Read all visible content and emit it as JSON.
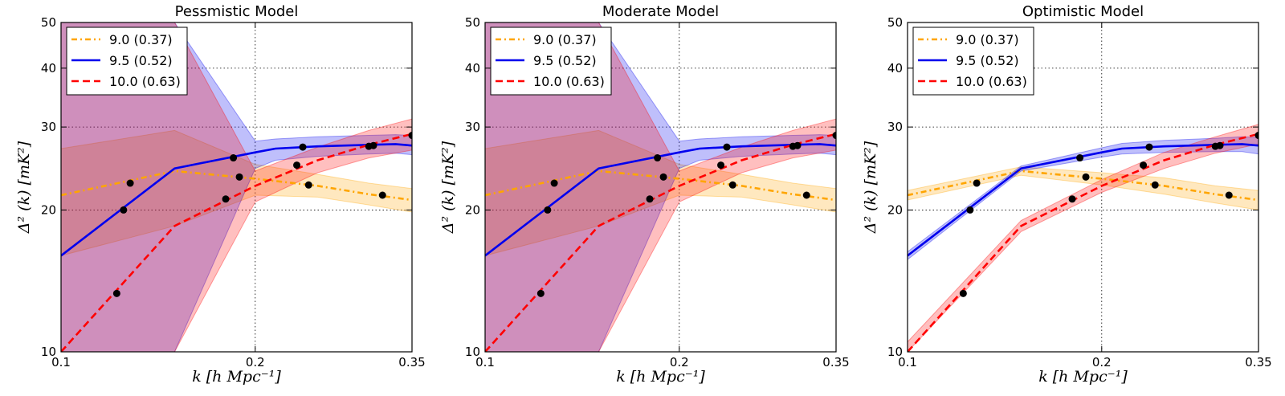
{
  "figure": {
    "xlabel": "k [h Mpc⁻¹]",
    "ylabel": "Δ² (k) [mK²]"
  },
  "chart_data": [
    {
      "type": "line",
      "title": "Pessmistic Model",
      "xscale": "log",
      "yscale": "log",
      "xlim": [
        0.1,
        0.35
      ],
      "ylim": [
        10,
        50
      ],
      "xticks": [
        0.1,
        0.2,
        0.35
      ],
      "xtick_labels": [
        "0.1",
        "0.2",
        "0.35"
      ],
      "yticks": [
        10,
        20,
        30,
        40,
        50
      ],
      "ytick_labels": [
        "10",
        "20",
        "30",
        "40",
        "50"
      ],
      "grid": true,
      "legend": "top-left",
      "series": [
        {
          "name": "9.0 (0.37)",
          "color": "#FFA500",
          "style": "dashdot",
          "x": [
            0.1,
            0.15,
            0.2,
            0.25,
            0.3,
            0.35
          ],
          "y": [
            21.5,
            24.2,
            23.3,
            22.5,
            21.6,
            21.0
          ],
          "band_low": [
            16.0,
            18.5,
            21.5,
            21.3,
            20.5,
            19.8
          ],
          "band_high": [
            27.0,
            29.5,
            25.0,
            23.8,
            22.8,
            22.2
          ]
        },
        {
          "name": "9.5 (0.52)",
          "color": "#0000EE",
          "style": "solid",
          "x": [
            0.1,
            0.15,
            0.2,
            0.215,
            0.25,
            0.3,
            0.33,
            0.35
          ],
          "y": [
            16.0,
            24.5,
            26.5,
            27.0,
            27.3,
            27.5,
            27.6,
            27.4
          ],
          "band_low": [
            10,
            10,
            24.5,
            25.5,
            26.0,
            26.3,
            26.4,
            26.2
          ],
          "band_high": [
            50,
            50,
            28.0,
            28.3,
            28.6,
            28.8,
            28.9,
            28.8
          ]
        },
        {
          "name": "10.0 (0.63)",
          "color": "#FF0000",
          "style": "dashed",
          "x": [
            0.1,
            0.15,
            0.2,
            0.25,
            0.3,
            0.35
          ],
          "y": [
            10.0,
            18.5,
            22.5,
            25.5,
            27.5,
            29.0
          ],
          "band_low": [
            10,
            10,
            20.8,
            24.0,
            25.8,
            26.8
          ],
          "band_high": [
            50,
            50,
            24.2,
            27.2,
            29.5,
            31.2
          ]
        }
      ],
      "points": {
        "x": [
          0.122,
          0.125,
          0.128,
          0.18,
          0.185,
          0.189,
          0.232,
          0.237,
          0.242,
          0.3,
          0.305,
          0.315,
          0.35
        ],
        "y": [
          13.3,
          20.0,
          22.8,
          21.1,
          25.8,
          23.5,
          24.9,
          27.2,
          22.6,
          27.3,
          27.4,
          21.5,
          28.8
        ]
      }
    },
    {
      "type": "line",
      "title": "Moderate Model",
      "xscale": "log",
      "yscale": "log",
      "xlim": [
        0.1,
        0.35
      ],
      "ylim": [
        10,
        50
      ],
      "xticks": [
        0.1,
        0.2,
        0.35
      ],
      "xtick_labels": [
        "0.1",
        "0.2",
        "0.35"
      ],
      "yticks": [
        10,
        20,
        30,
        40,
        50
      ],
      "ytick_labels": [
        "10",
        "20",
        "30",
        "40",
        "50"
      ],
      "grid": true,
      "legend": "top-left",
      "series": [
        {
          "name": "9.0 (0.37)",
          "color": "#FFA500",
          "style": "dashdot",
          "x": [
            0.1,
            0.15,
            0.2,
            0.25,
            0.3,
            0.35
          ],
          "y": [
            21.5,
            24.2,
            23.3,
            22.5,
            21.6,
            21.0
          ],
          "band_low": [
            16.0,
            18.5,
            21.5,
            21.3,
            20.5,
            19.8
          ],
          "band_high": [
            27.0,
            29.5,
            25.0,
            23.8,
            22.8,
            22.2
          ]
        },
        {
          "name": "9.5 (0.52)",
          "color": "#0000EE",
          "style": "solid",
          "x": [
            0.1,
            0.15,
            0.2,
            0.215,
            0.25,
            0.3,
            0.33,
            0.35
          ],
          "y": [
            16.0,
            24.5,
            26.5,
            27.0,
            27.3,
            27.5,
            27.6,
            27.4
          ],
          "band_low": [
            10,
            10,
            24.5,
            25.5,
            26.0,
            26.3,
            26.4,
            26.2
          ],
          "band_high": [
            50,
            50,
            28.0,
            28.3,
            28.6,
            28.8,
            28.9,
            28.8
          ]
        },
        {
          "name": "10.0 (0.63)",
          "color": "#FF0000",
          "style": "dashed",
          "x": [
            0.1,
            0.15,
            0.2,
            0.25,
            0.3,
            0.35
          ],
          "y": [
            10.0,
            18.5,
            22.5,
            25.5,
            27.5,
            29.0
          ],
          "band_low": [
            10,
            10,
            20.8,
            24.0,
            25.8,
            26.8
          ],
          "band_high": [
            50,
            50,
            24.2,
            27.2,
            29.5,
            31.2
          ]
        }
      ],
      "points": {
        "x": [
          0.122,
          0.125,
          0.128,
          0.18,
          0.185,
          0.189,
          0.232,
          0.237,
          0.242,
          0.3,
          0.305,
          0.315,
          0.35
        ],
        "y": [
          13.3,
          20.0,
          22.8,
          21.1,
          25.8,
          23.5,
          24.9,
          27.2,
          22.6,
          27.3,
          27.4,
          21.5,
          28.8
        ]
      }
    },
    {
      "type": "line",
      "title": "Optimistic Model",
      "xscale": "log",
      "yscale": "log",
      "xlim": [
        0.1,
        0.35
      ],
      "ylim": [
        10,
        50
      ],
      "xticks": [
        0.1,
        0.2,
        0.35
      ],
      "xtick_labels": [
        "0.1",
        "0.2",
        "0.35"
      ],
      "yticks": [
        10,
        20,
        30,
        40,
        50
      ],
      "ytick_labels": [
        "10",
        "20",
        "30",
        "40",
        "50"
      ],
      "grid": true,
      "legend": "top-left",
      "series": [
        {
          "name": "9.0 (0.37)",
          "color": "#FFA500",
          "style": "dashdot",
          "x": [
            0.1,
            0.15,
            0.2,
            0.25,
            0.3,
            0.35
          ],
          "y": [
            21.5,
            24.2,
            23.3,
            22.5,
            21.6,
            21.0
          ],
          "band_low": [
            21.0,
            23.7,
            22.6,
            21.6,
            20.7,
            20.0
          ],
          "band_high": [
            22.0,
            24.7,
            24.0,
            23.4,
            22.5,
            22.0
          ]
        },
        {
          "name": "9.5 (0.52)",
          "color": "#0000EE",
          "style": "solid",
          "x": [
            0.1,
            0.15,
            0.2,
            0.215,
            0.25,
            0.3,
            0.33,
            0.35
          ],
          "y": [
            16.0,
            24.5,
            26.5,
            27.0,
            27.3,
            27.5,
            27.6,
            27.4
          ],
          "band_low": [
            15.7,
            24.2,
            25.9,
            26.3,
            26.5,
            26.6,
            26.6,
            26.3
          ],
          "band_high": [
            16.3,
            24.8,
            27.1,
            27.7,
            28.1,
            28.4,
            28.6,
            28.5
          ]
        },
        {
          "name": "10.0 (0.63)",
          "color": "#FF0000",
          "style": "dashed",
          "x": [
            0.1,
            0.15,
            0.2,
            0.25,
            0.3,
            0.35
          ],
          "y": [
            10.0,
            18.5,
            22.5,
            25.5,
            27.5,
            29.0
          ],
          "band_low": [
            10.0,
            18.0,
            21.8,
            24.5,
            26.4,
            27.6
          ],
          "band_high": [
            10.5,
            19.0,
            23.2,
            26.5,
            28.6,
            30.4
          ]
        }
      ],
      "points": {
        "x": [
          0.122,
          0.125,
          0.128,
          0.18,
          0.185,
          0.189,
          0.232,
          0.237,
          0.242,
          0.3,
          0.305,
          0.315,
          0.35
        ],
        "y": [
          13.3,
          20.0,
          22.8,
          21.1,
          25.8,
          23.5,
          24.9,
          27.2,
          22.6,
          27.3,
          27.4,
          21.5,
          28.8
        ]
      }
    }
  ]
}
